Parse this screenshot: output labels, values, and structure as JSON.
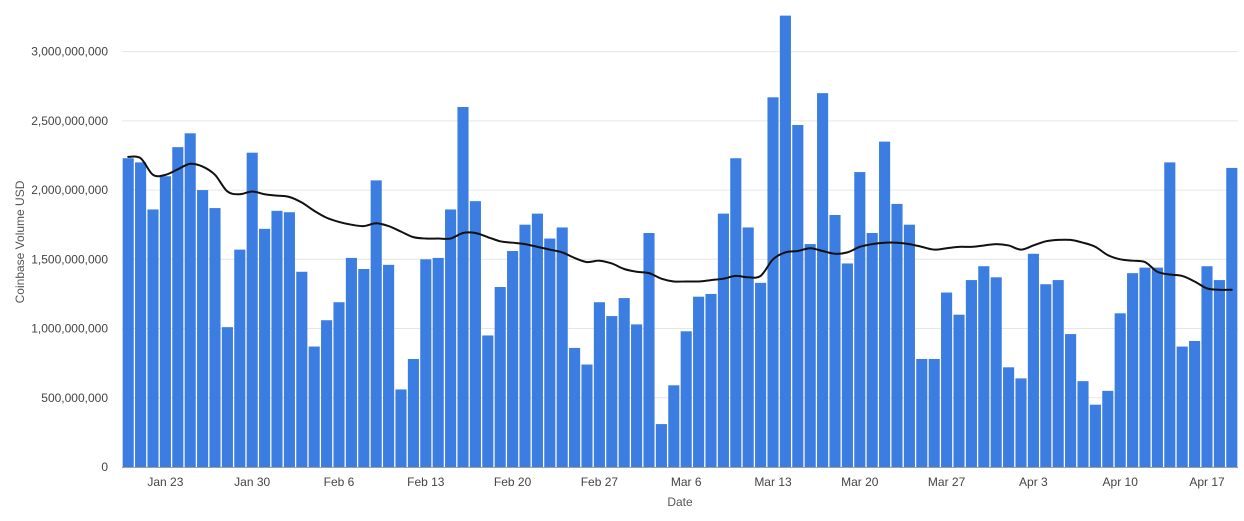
{
  "chart_data": {
    "type": "bar",
    "title": "",
    "xlabel": "Date",
    "ylabel": "Coinbase Volume USD",
    "ylim": [
      0,
      3250000000
    ],
    "yticks": [
      0,
      500000000,
      1000000000,
      1500000000,
      2000000000,
      2500000000,
      3000000000
    ],
    "ytick_labels": [
      "0",
      "500,000,000",
      "1,000,000,000",
      "1,500,000,000",
      "2,000,000,000",
      "2,500,000,000",
      "3,000,000,000"
    ],
    "xtick_labels": [
      {
        "label": "Jan 23",
        "index": 3
      },
      {
        "label": "Jan 30",
        "index": 10
      },
      {
        "label": "Feb 6",
        "index": 17
      },
      {
        "label": "Feb 13",
        "index": 24
      },
      {
        "label": "Feb 20",
        "index": 31
      },
      {
        "label": "Feb 27",
        "index": 38
      },
      {
        "label": "Mar 6",
        "index": 45
      },
      {
        "label": "Mar 13",
        "index": 52
      },
      {
        "label": "Mar 20",
        "index": 59
      },
      {
        "label": "Mar 27",
        "index": 66
      },
      {
        "label": "Apr 3",
        "index": 73
      },
      {
        "label": "Apr 10",
        "index": 80
      },
      {
        "label": "Apr 17",
        "index": 87
      }
    ],
    "grid": true,
    "legend": "none",
    "colors": {
      "bars": "#3b7de0",
      "line": "#111111",
      "grid": "#e6e6e6",
      "axis": "#9e9e9e"
    },
    "series": [
      {
        "type": "bar",
        "values": [
          2230000000,
          2200000000,
          1860000000,
          2100000000,
          2310000000,
          2410000000,
          2000000000,
          1870000000,
          1010000000,
          1570000000,
          2270000000,
          1720000000,
          1850000000,
          1840000000,
          1410000000,
          870000000,
          1060000000,
          1190000000,
          1510000000,
          1430000000,
          2070000000,
          1460000000,
          560000000,
          780000000,
          1500000000,
          1510000000,
          1860000000,
          2600000000,
          1920000000,
          950000000,
          1300000000,
          1560000000,
          1750000000,
          1830000000,
          1650000000,
          1730000000,
          860000000,
          740000000,
          1190000000,
          1090000000,
          1220000000,
          1030000000,
          1690000000,
          310000000,
          590000000,
          980000000,
          1230000000,
          1250000000,
          1830000000,
          2230000000,
          1730000000,
          1330000000,
          2670000000,
          3260000000,
          2470000000,
          1610000000,
          2700000000,
          1820000000,
          1470000000,
          2130000000,
          1690000000,
          2350000000,
          1900000000,
          1750000000,
          780000000,
          780000000,
          1260000000,
          1100000000,
          1350000000,
          1450000000,
          1370000000,
          720000000,
          640000000,
          1540000000,
          1320000000,
          1350000000,
          960000000,
          620000000,
          450000000,
          550000000,
          1110000000,
          1400000000,
          1440000000,
          1440000000,
          2200000000,
          870000000,
          910000000,
          1450000000,
          1350000000,
          2160000000
        ]
      },
      {
        "type": "line",
        "values": [
          2240000000,
          2230000000,
          2110000000,
          2110000000,
          2150000000,
          2190000000,
          2170000000,
          2110000000,
          1990000000,
          1970000000,
          1990000000,
          1970000000,
          1960000000,
          1950000000,
          1910000000,
          1850000000,
          1800000000,
          1770000000,
          1750000000,
          1740000000,
          1760000000,
          1740000000,
          1700000000,
          1660000000,
          1650000000,
          1650000000,
          1650000000,
          1690000000,
          1690000000,
          1660000000,
          1630000000,
          1620000000,
          1610000000,
          1590000000,
          1570000000,
          1550000000,
          1510000000,
          1480000000,
          1490000000,
          1470000000,
          1430000000,
          1410000000,
          1400000000,
          1360000000,
          1340000000,
          1340000000,
          1340000000,
          1350000000,
          1360000000,
          1380000000,
          1370000000,
          1380000000,
          1500000000,
          1550000000,
          1560000000,
          1580000000,
          1560000000,
          1540000000,
          1550000000,
          1590000000,
          1610000000,
          1620000000,
          1620000000,
          1610000000,
          1590000000,
          1570000000,
          1580000000,
          1590000000,
          1590000000,
          1600000000,
          1610000000,
          1600000000,
          1570000000,
          1600000000,
          1630000000,
          1640000000,
          1640000000,
          1620000000,
          1590000000,
          1530000000,
          1500000000,
          1490000000,
          1480000000,
          1410000000,
          1390000000,
          1380000000,
          1340000000,
          1290000000,
          1280000000,
          1280000000
        ]
      }
    ]
  }
}
